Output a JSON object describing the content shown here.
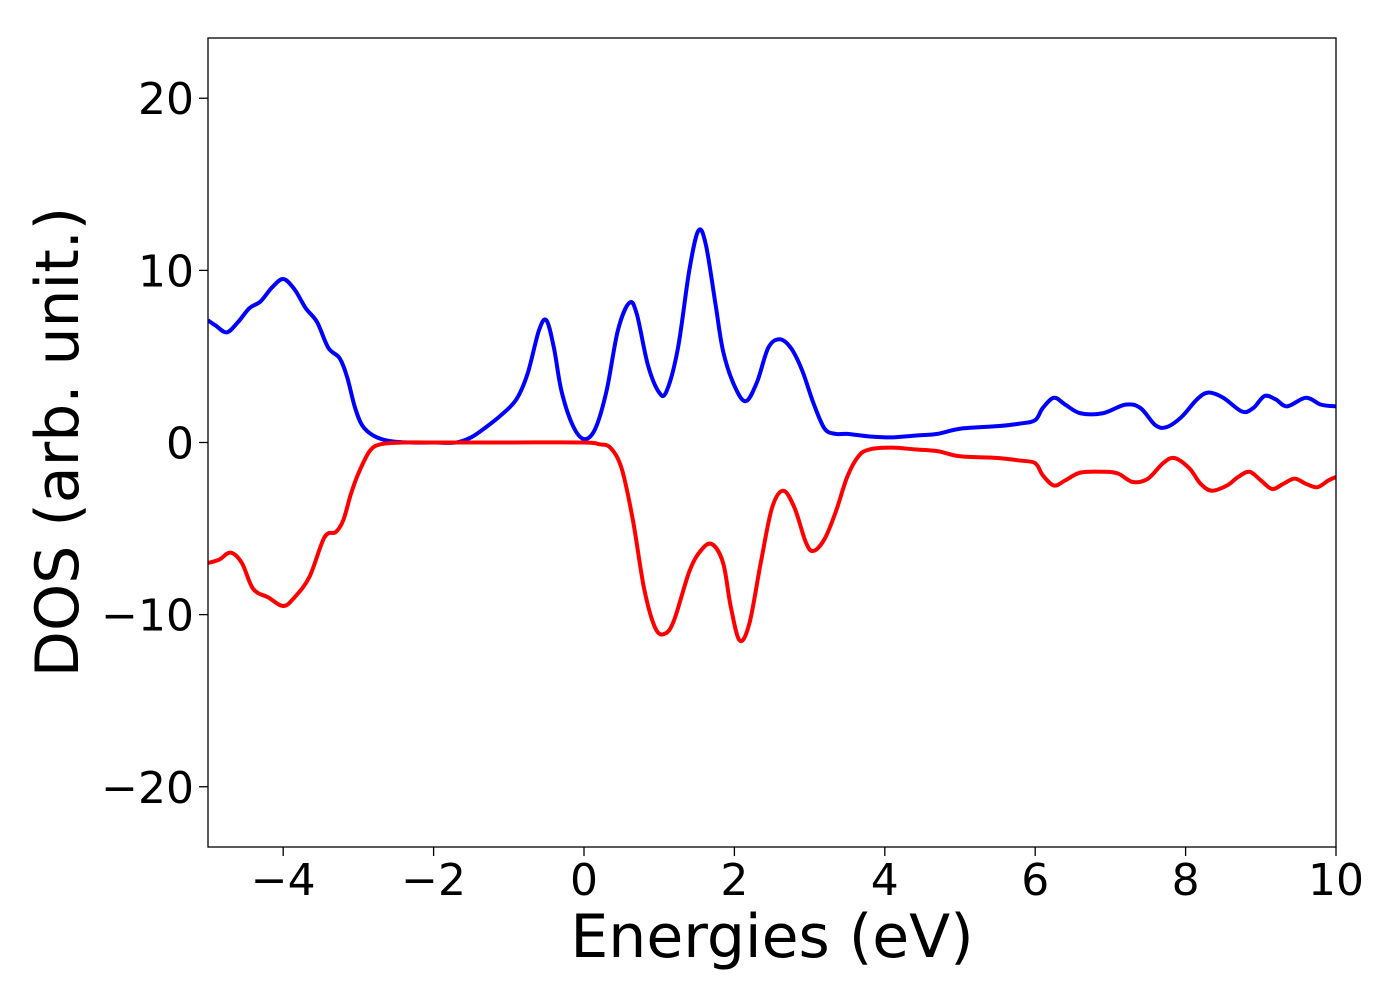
{
  "chart_data": {
    "type": "line",
    "title": "",
    "xlabel": "Energies (eV)",
    "ylabel": "DOS (arb. unit.)",
    "xlim": [
      -5,
      10
    ],
    "ylim": [
      -23.5,
      23.5
    ],
    "grid": false,
    "legend": "none",
    "x_ticks": [
      -4,
      -2,
      0,
      2,
      4,
      6,
      8,
      10
    ],
    "x_tick_labels": [
      "−4",
      "−2",
      "0",
      "2",
      "4",
      "6",
      "8",
      "10"
    ],
    "y_ticks": [
      20,
      10,
      0,
      -10,
      -20
    ],
    "y_tick_labels": [
      "20",
      "10",
      "0",
      "−10",
      "−20"
    ],
    "series": [
      {
        "color": "#0000ff",
        "points": [
          [
            -5.0,
            7.1
          ],
          [
            -4.9,
            6.8
          ],
          [
            -4.75,
            6.4
          ],
          [
            -4.6,
            7.0
          ],
          [
            -4.45,
            7.8
          ],
          [
            -4.3,
            8.2
          ],
          [
            -4.15,
            9.0
          ],
          [
            -4.0,
            9.5
          ],
          [
            -3.85,
            8.9
          ],
          [
            -3.7,
            7.8
          ],
          [
            -3.55,
            7.0
          ],
          [
            -3.4,
            5.5
          ],
          [
            -3.25,
            4.9
          ],
          [
            -3.15,
            3.8
          ],
          [
            -3.05,
            2.1
          ],
          [
            -2.95,
            1.0
          ],
          [
            -2.8,
            0.4
          ],
          [
            -2.6,
            0.1
          ],
          [
            -2.3,
            0.0
          ],
          [
            -2.0,
            0.0
          ],
          [
            -1.7,
            0.0
          ],
          [
            -1.5,
            0.3
          ],
          [
            -1.3,
            0.9
          ],
          [
            -1.1,
            1.6
          ],
          [
            -0.9,
            2.5
          ],
          [
            -0.75,
            4.0
          ],
          [
            -0.6,
            6.5
          ],
          [
            -0.5,
            7.1
          ],
          [
            -0.4,
            5.5
          ],
          [
            -0.3,
            3.0
          ],
          [
            -0.15,
            1.0
          ],
          [
            0.0,
            0.2
          ],
          [
            0.15,
            0.8
          ],
          [
            0.3,
            3.0
          ],
          [
            0.45,
            6.5
          ],
          [
            0.6,
            8.1
          ],
          [
            0.7,
            7.5
          ],
          [
            0.85,
            4.5
          ],
          [
            1.0,
            2.9
          ],
          [
            1.1,
            3.0
          ],
          [
            1.25,
            5.5
          ],
          [
            1.4,
            10.0
          ],
          [
            1.52,
            12.3
          ],
          [
            1.62,
            11.5
          ],
          [
            1.75,
            8.0
          ],
          [
            1.85,
            5.3
          ],
          [
            2.0,
            3.3
          ],
          [
            2.15,
            2.4
          ],
          [
            2.3,
            3.5
          ],
          [
            2.45,
            5.5
          ],
          [
            2.6,
            6.0
          ],
          [
            2.75,
            5.5
          ],
          [
            2.9,
            4.2
          ],
          [
            3.05,
            2.3
          ],
          [
            3.2,
            0.8
          ],
          [
            3.35,
            0.5
          ],
          [
            3.5,
            0.5
          ],
          [
            3.8,
            0.35
          ],
          [
            4.1,
            0.3
          ],
          [
            4.4,
            0.4
          ],
          [
            4.7,
            0.5
          ],
          [
            5.0,
            0.8
          ],
          [
            5.5,
            0.95
          ],
          [
            5.8,
            1.1
          ],
          [
            6.0,
            1.3
          ],
          [
            6.1,
            2.0
          ],
          [
            6.25,
            2.6
          ],
          [
            6.4,
            2.2
          ],
          [
            6.6,
            1.7
          ],
          [
            6.9,
            1.7
          ],
          [
            7.2,
            2.2
          ],
          [
            7.4,
            2.0
          ],
          [
            7.6,
            1.0
          ],
          [
            7.75,
            0.9
          ],
          [
            7.95,
            1.5
          ],
          [
            8.15,
            2.5
          ],
          [
            8.3,
            2.9
          ],
          [
            8.5,
            2.6
          ],
          [
            8.75,
            1.8
          ],
          [
            8.9,
            2.0
          ],
          [
            9.05,
            2.7
          ],
          [
            9.2,
            2.5
          ],
          [
            9.35,
            2.1
          ],
          [
            9.6,
            2.6
          ],
          [
            9.8,
            2.2
          ],
          [
            10.0,
            2.1
          ]
        ]
      },
      {
        "color": "#ff0000",
        "points": [
          [
            -5.0,
            -7.0
          ],
          [
            -4.85,
            -6.8
          ],
          [
            -4.7,
            -6.4
          ],
          [
            -4.55,
            -7.0
          ],
          [
            -4.4,
            -8.5
          ],
          [
            -4.2,
            -9.0
          ],
          [
            -4.0,
            -9.5
          ],
          [
            -3.85,
            -9.0
          ],
          [
            -3.65,
            -7.8
          ],
          [
            -3.45,
            -5.5
          ],
          [
            -3.3,
            -5.2
          ],
          [
            -3.2,
            -4.5
          ],
          [
            -3.1,
            -3.0
          ],
          [
            -3.0,
            -1.8
          ],
          [
            -2.85,
            -0.5
          ],
          [
            -2.7,
            -0.1
          ],
          [
            -2.4,
            0.0
          ],
          [
            -2.0,
            0.0
          ],
          [
            -1.0,
            0.0
          ],
          [
            0.0,
            0.0
          ],
          [
            0.2,
            -0.1
          ],
          [
            0.35,
            -0.3
          ],
          [
            0.5,
            -1.5
          ],
          [
            0.65,
            -4.5
          ],
          [
            0.8,
            -8.5
          ],
          [
            0.95,
            -10.8
          ],
          [
            1.08,
            -11.1
          ],
          [
            1.2,
            -10.3
          ],
          [
            1.4,
            -7.5
          ],
          [
            1.55,
            -6.3
          ],
          [
            1.7,
            -5.9
          ],
          [
            1.85,
            -7.0
          ],
          [
            1.95,
            -9.5
          ],
          [
            2.07,
            -11.5
          ],
          [
            2.2,
            -10.5
          ],
          [
            2.35,
            -7.0
          ],
          [
            2.5,
            -3.8
          ],
          [
            2.65,
            -2.8
          ],
          [
            2.8,
            -3.8
          ],
          [
            2.95,
            -5.8
          ],
          [
            3.05,
            -6.3
          ],
          [
            3.2,
            -5.6
          ],
          [
            3.35,
            -4.0
          ],
          [
            3.5,
            -2.0
          ],
          [
            3.65,
            -0.8
          ],
          [
            3.8,
            -0.4
          ],
          [
            4.1,
            -0.3
          ],
          [
            4.4,
            -0.4
          ],
          [
            4.7,
            -0.5
          ],
          [
            5.0,
            -0.8
          ],
          [
            5.5,
            -0.9
          ],
          [
            5.8,
            -1.05
          ],
          [
            6.0,
            -1.2
          ],
          [
            6.1,
            -1.9
          ],
          [
            6.25,
            -2.5
          ],
          [
            6.4,
            -2.2
          ],
          [
            6.6,
            -1.75
          ],
          [
            6.9,
            -1.7
          ],
          [
            7.1,
            -1.8
          ],
          [
            7.3,
            -2.3
          ],
          [
            7.5,
            -2.1
          ],
          [
            7.7,
            -1.2
          ],
          [
            7.85,
            -0.9
          ],
          [
            8.05,
            -1.5
          ],
          [
            8.2,
            -2.4
          ],
          [
            8.35,
            -2.8
          ],
          [
            8.55,
            -2.5
          ],
          [
            8.7,
            -2.0
          ],
          [
            8.85,
            -1.7
          ],
          [
            9.0,
            -2.2
          ],
          [
            9.15,
            -2.7
          ],
          [
            9.3,
            -2.4
          ],
          [
            9.45,
            -2.1
          ],
          [
            9.6,
            -2.4
          ],
          [
            9.75,
            -2.6
          ],
          [
            9.9,
            -2.2
          ],
          [
            10.0,
            -2.0
          ]
        ]
      }
    ]
  }
}
